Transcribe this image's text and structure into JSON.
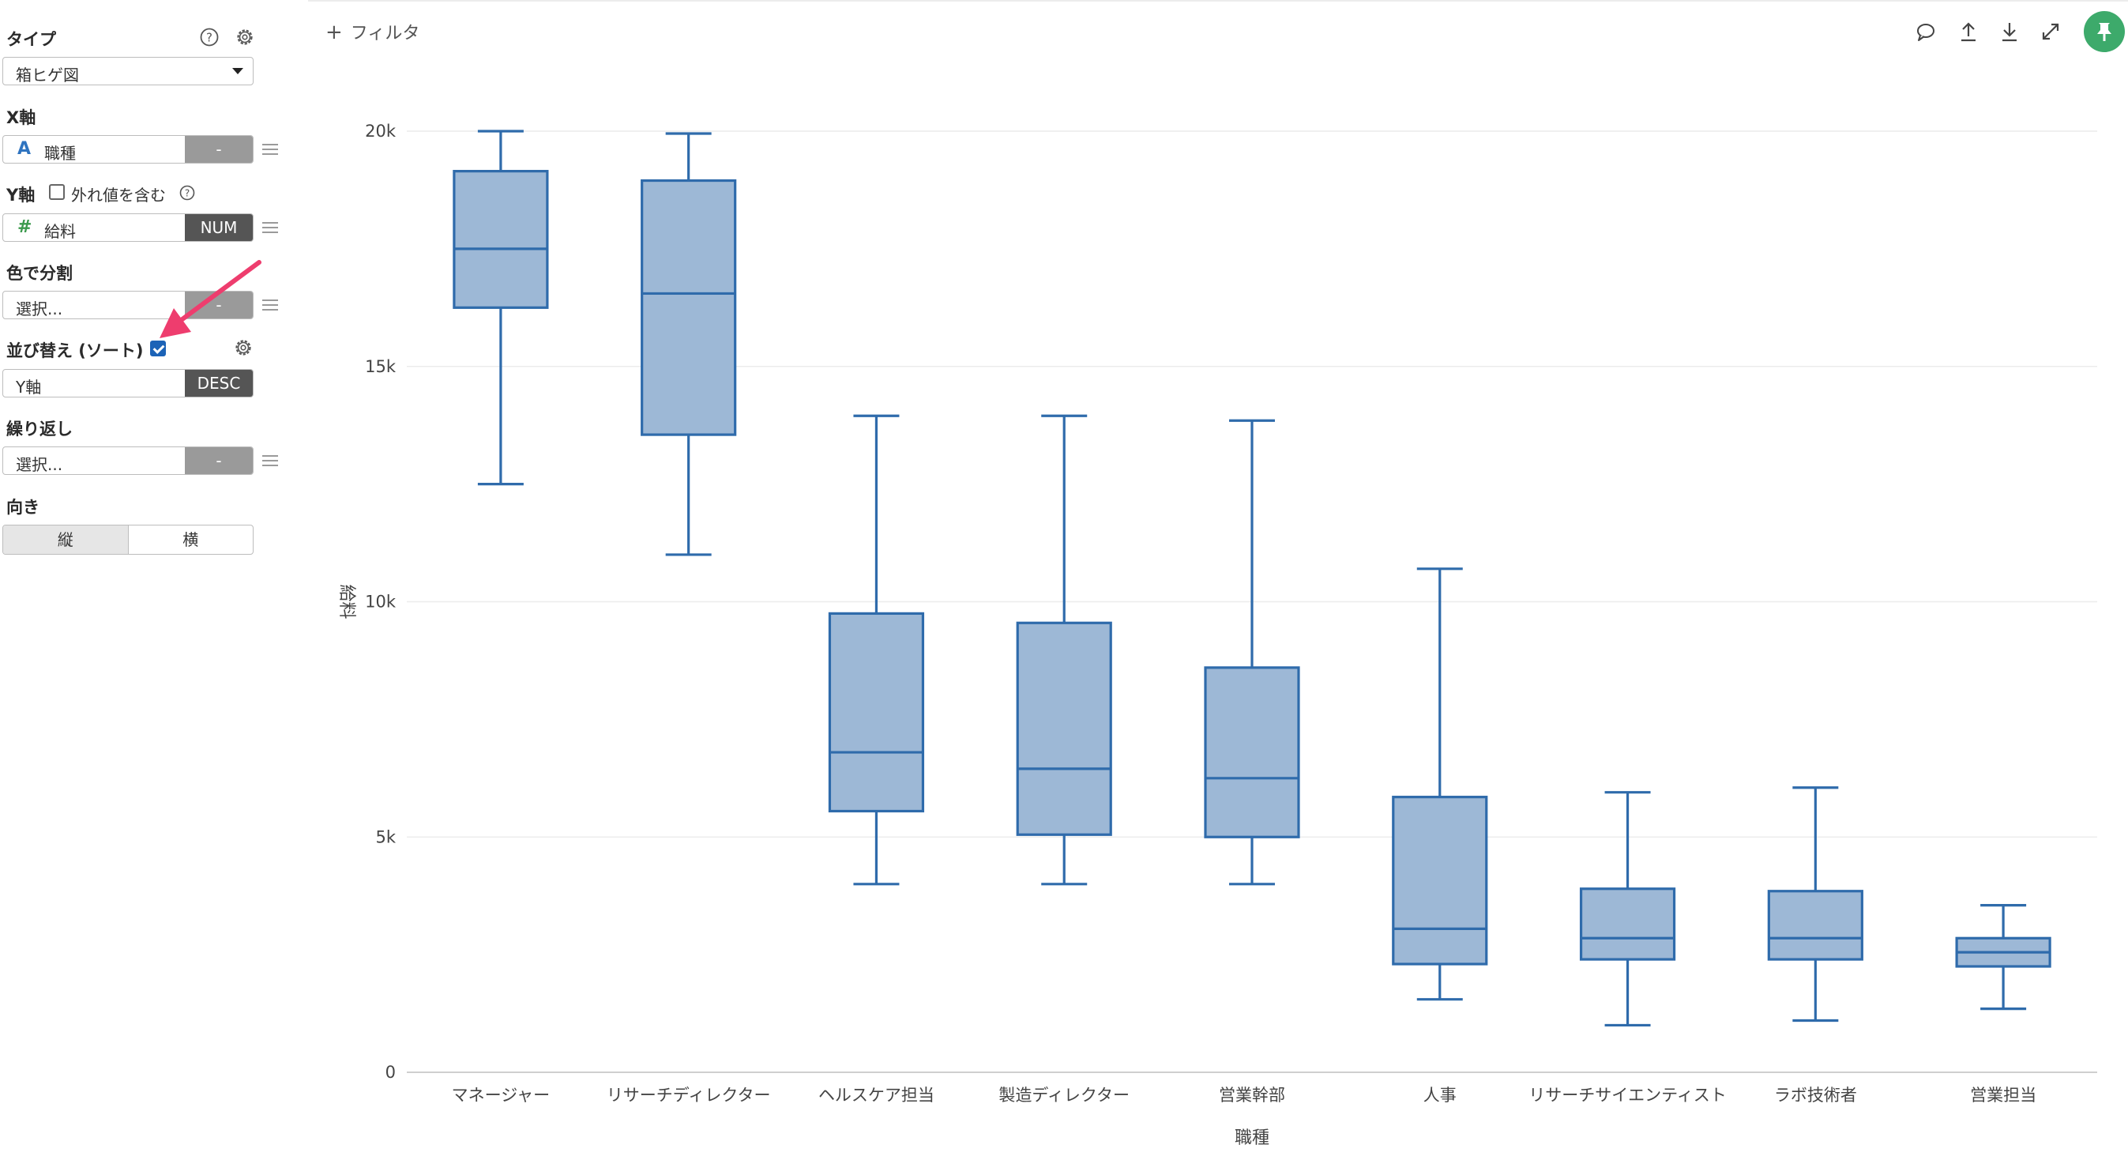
{
  "panel": {
    "type_label": "タイプ",
    "type_value": "箱ヒゲ図",
    "x_label": "X軸",
    "x_icon": "A",
    "x_value": "職種",
    "x_btn": "-",
    "y_label": "Y軸",
    "y_outlier_label": "外れ値を含む",
    "y_icon": "#",
    "y_value": "給料",
    "y_btn": "NUM",
    "color_label": "色で分割",
    "color_value": "選択...",
    "color_btn": "-",
    "sort_label": "並び替え (ソート)",
    "sort_value": "Y軸",
    "sort_btn": "DESC",
    "repeat_label": "繰り返し",
    "repeat_value": "選択...",
    "repeat_btn": "-",
    "orient_label": "向き",
    "orient_options": [
      "縦",
      "横"
    ]
  },
  "toolbar": {
    "filter_label": "フィルタ",
    "icons": [
      "comment-icon",
      "upload-icon",
      "download-icon",
      "expand-icon",
      "pin-icon"
    ]
  },
  "colors": {
    "box_fill": "#9db8d6",
    "box_stroke": "#2f6bab",
    "accent_arrow": "#ee3d6e",
    "pin": "#3daa6b"
  },
  "chart_data": {
    "type": "box",
    "xlabel": "職種",
    "ylabel": "給料",
    "ylim": [
      0,
      20000
    ],
    "yticks": [
      0,
      5000,
      10000,
      15000,
      20000
    ],
    "ytick_labels": [
      "0",
      "5k",
      "10k",
      "15k",
      "20k"
    ],
    "grid": true,
    "sorted": "desc",
    "categories": [
      "マネージャー",
      "リサーチディレクター",
      "ヘルスケア担当",
      "製造ディレクター",
      "営業幹部",
      "人事",
      "リサーチサイエンティスト",
      "ラボ技術者",
      "営業担当"
    ],
    "boxes": [
      {
        "min": 12500,
        "q1": 16250,
        "median": 17500,
        "q3": 19150,
        "max": 20000
      },
      {
        "min": 11000,
        "q1": 13550,
        "median": 16550,
        "q3": 18950,
        "max": 19950
      },
      {
        "min": 4000,
        "q1": 5550,
        "median": 6800,
        "q3": 9750,
        "max": 13950
      },
      {
        "min": 4000,
        "q1": 5050,
        "median": 6450,
        "q3": 9550,
        "max": 13950
      },
      {
        "min": 4000,
        "q1": 5000,
        "median": 6250,
        "q3": 8600,
        "max": 13850
      },
      {
        "min": 1550,
        "q1": 2300,
        "median": 3050,
        "q3": 5850,
        "max": 10700
      },
      {
        "min": 1000,
        "q1": 2400,
        "median": 2850,
        "q3": 3900,
        "max": 5950
      },
      {
        "min": 1100,
        "q1": 2400,
        "median": 2850,
        "q3": 3850,
        "max": 6050
      },
      {
        "min": 1350,
        "q1": 2250,
        "median": 2550,
        "q3": 2850,
        "max": 3550
      }
    ]
  }
}
